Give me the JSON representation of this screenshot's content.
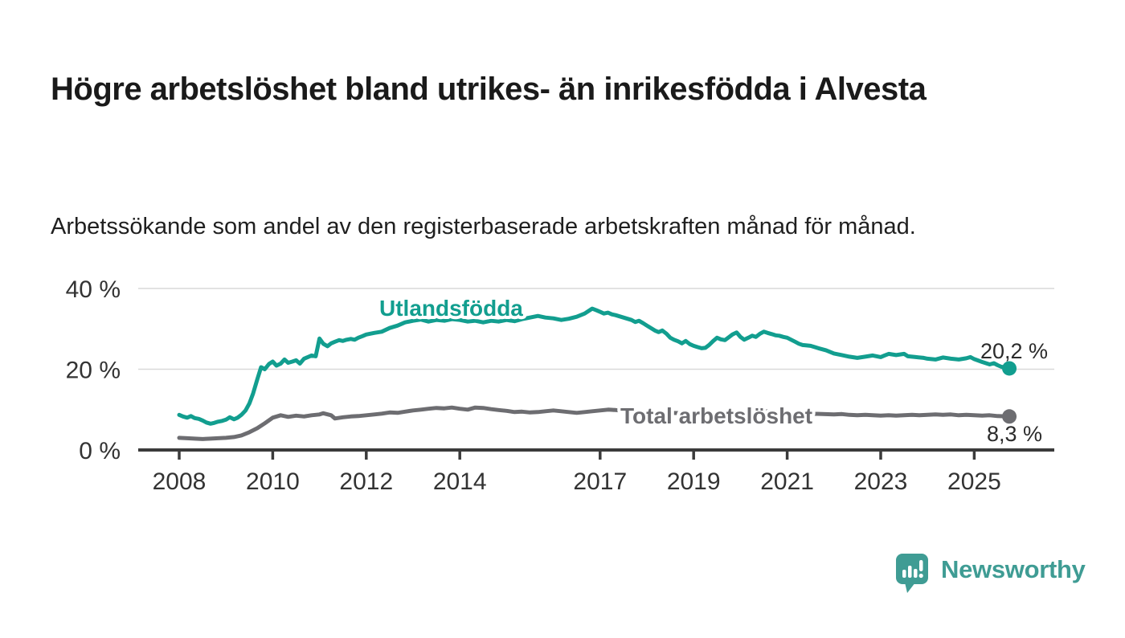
{
  "title": "Högre arbetslöshet bland utrikes- än inrikesfödda i Alvesta",
  "subtitle": "Arbetssökande som andel av den registerbaserade arbetskraften månad för månad.",
  "branding": {
    "logo_text": "Newsworthy",
    "logo_icon": "bar-chart-speech-bubble-icon",
    "logo_color": "#3f9c94"
  },
  "colors": {
    "foreign_born_line": "#129e8f",
    "total_line": "#6d6d71",
    "axis": "#3b3b3b",
    "gridline": "#d9d9d9",
    "tick_label": "#333333",
    "end_label": "#2b2b2b"
  },
  "chart_data": {
    "type": "line",
    "title": "Högre arbetslöshet bland utrikes- än inrikesfödda i Alvesta",
    "subtitle": "Arbetssökande som andel av den registerbaserade arbetskraften månad för månad.",
    "x_unit": "decimal_year",
    "y_unit": "percent",
    "xlim": [
      2007.1,
      2026.7
    ],
    "ylim": [
      0,
      42
    ],
    "grid": "horizontal",
    "x_ticks": [
      2008,
      2010,
      2012,
      2014,
      2017,
      2019,
      2021,
      2023,
      2025
    ],
    "y_ticks": [
      {
        "value": 0,
        "label": "0 %"
      },
      {
        "value": 20,
        "label": "20 %"
      },
      {
        "value": 40,
        "label": "40 %"
      }
    ],
    "legend_position": "inline-labels",
    "series": [
      {
        "name": "Utlandsfödda",
        "color": "#129e8f",
        "end_value": 20.2,
        "end_label": "20,2 %",
        "points": [
          [
            2008.0,
            8.7
          ],
          [
            2008.08,
            8.3
          ],
          [
            2008.17,
            8.0
          ],
          [
            2008.25,
            8.4
          ],
          [
            2008.33,
            7.9
          ],
          [
            2008.42,
            7.7
          ],
          [
            2008.5,
            7.3
          ],
          [
            2008.58,
            6.8
          ],
          [
            2008.67,
            6.5
          ],
          [
            2008.75,
            6.7
          ],
          [
            2008.83,
            7.0
          ],
          [
            2008.92,
            7.2
          ],
          [
            2009.0,
            7.5
          ],
          [
            2009.08,
            8.1
          ],
          [
            2009.17,
            7.6
          ],
          [
            2009.25,
            8.0
          ],
          [
            2009.33,
            8.7
          ],
          [
            2009.42,
            9.8
          ],
          [
            2009.5,
            11.5
          ],
          [
            2009.58,
            14.0
          ],
          [
            2009.67,
            17.5
          ],
          [
            2009.75,
            20.5
          ],
          [
            2009.83,
            20.0
          ],
          [
            2009.92,
            21.3
          ],
          [
            2010.0,
            21.9
          ],
          [
            2010.08,
            20.9
          ],
          [
            2010.17,
            21.4
          ],
          [
            2010.25,
            22.4
          ],
          [
            2010.33,
            21.6
          ],
          [
            2010.42,
            21.9
          ],
          [
            2010.5,
            22.2
          ],
          [
            2010.58,
            21.4
          ],
          [
            2010.67,
            22.6
          ],
          [
            2010.75,
            23.0
          ],
          [
            2010.83,
            23.4
          ],
          [
            2010.92,
            23.2
          ],
          [
            2011.0,
            27.6
          ],
          [
            2011.08,
            26.3
          ],
          [
            2011.17,
            25.7
          ],
          [
            2011.25,
            26.4
          ],
          [
            2011.33,
            26.8
          ],
          [
            2011.42,
            27.2
          ],
          [
            2011.5,
            27.0
          ],
          [
            2011.58,
            27.3
          ],
          [
            2011.67,
            27.5
          ],
          [
            2011.75,
            27.3
          ],
          [
            2011.83,
            27.8
          ],
          [
            2011.92,
            28.2
          ],
          [
            2012.0,
            28.6
          ],
          [
            2012.17,
            29.0
          ],
          [
            2012.33,
            29.3
          ],
          [
            2012.5,
            30.2
          ],
          [
            2012.67,
            30.8
          ],
          [
            2012.83,
            31.6
          ],
          [
            2013.0,
            32.0
          ],
          [
            2013.17,
            32.3
          ],
          [
            2013.33,
            31.8
          ],
          [
            2013.5,
            32.2
          ],
          [
            2013.67,
            32.0
          ],
          [
            2013.83,
            32.4
          ],
          [
            2014.0,
            32.2
          ],
          [
            2014.17,
            31.8
          ],
          [
            2014.33,
            32.0
          ],
          [
            2014.5,
            31.6
          ],
          [
            2014.67,
            32.0
          ],
          [
            2014.83,
            31.8
          ],
          [
            2015.0,
            32.2
          ],
          [
            2015.17,
            31.9
          ],
          [
            2015.33,
            32.4
          ],
          [
            2015.5,
            32.8
          ],
          [
            2015.67,
            33.2
          ],
          [
            2015.83,
            32.8
          ],
          [
            2016.0,
            32.6
          ],
          [
            2016.17,
            32.2
          ],
          [
            2016.33,
            32.5
          ],
          [
            2016.5,
            33.0
          ],
          [
            2016.67,
            33.8
          ],
          [
            2016.83,
            35.0
          ],
          [
            2016.92,
            34.6
          ],
          [
            2017.0,
            34.2
          ],
          [
            2017.08,
            33.8
          ],
          [
            2017.17,
            34.0
          ],
          [
            2017.25,
            33.6
          ],
          [
            2017.33,
            33.4
          ],
          [
            2017.5,
            32.8
          ],
          [
            2017.67,
            32.2
          ],
          [
            2017.75,
            31.7
          ],
          [
            2017.83,
            32.0
          ],
          [
            2017.92,
            31.4
          ],
          [
            2018.0,
            30.8
          ],
          [
            2018.17,
            29.6
          ],
          [
            2018.25,
            29.2
          ],
          [
            2018.33,
            29.6
          ],
          [
            2018.42,
            28.8
          ],
          [
            2018.5,
            27.8
          ],
          [
            2018.58,
            27.3
          ],
          [
            2018.67,
            26.9
          ],
          [
            2018.75,
            26.4
          ],
          [
            2018.83,
            27.0
          ],
          [
            2018.92,
            26.2
          ],
          [
            2019.0,
            25.8
          ],
          [
            2019.08,
            25.5
          ],
          [
            2019.17,
            25.2
          ],
          [
            2019.25,
            25.3
          ],
          [
            2019.33,
            26.0
          ],
          [
            2019.42,
            27.0
          ],
          [
            2019.5,
            27.8
          ],
          [
            2019.58,
            27.4
          ],
          [
            2019.67,
            27.2
          ],
          [
            2019.75,
            27.9
          ],
          [
            2019.83,
            28.6
          ],
          [
            2019.92,
            29.1
          ],
          [
            2020.0,
            28.0
          ],
          [
            2020.08,
            27.3
          ],
          [
            2020.17,
            27.8
          ],
          [
            2020.25,
            28.3
          ],
          [
            2020.33,
            28.0
          ],
          [
            2020.42,
            28.8
          ],
          [
            2020.5,
            29.3
          ],
          [
            2020.58,
            29.0
          ],
          [
            2020.67,
            28.7
          ],
          [
            2020.75,
            28.4
          ],
          [
            2020.83,
            28.3
          ],
          [
            2020.92,
            28.0
          ],
          [
            2021.0,
            27.8
          ],
          [
            2021.17,
            26.8
          ],
          [
            2021.25,
            26.3
          ],
          [
            2021.33,
            26.0
          ],
          [
            2021.42,
            25.9
          ],
          [
            2021.5,
            25.8
          ],
          [
            2021.67,
            25.2
          ],
          [
            2021.83,
            24.7
          ],
          [
            2022.0,
            23.9
          ],
          [
            2022.17,
            23.5
          ],
          [
            2022.33,
            23.1
          ],
          [
            2022.5,
            22.8
          ],
          [
            2022.67,
            23.1
          ],
          [
            2022.83,
            23.4
          ],
          [
            2023.0,
            23.0
          ],
          [
            2023.08,
            23.4
          ],
          [
            2023.17,
            23.8
          ],
          [
            2023.33,
            23.5
          ],
          [
            2023.5,
            23.8
          ],
          [
            2023.58,
            23.2
          ],
          [
            2023.75,
            23.0
          ],
          [
            2023.92,
            22.8
          ],
          [
            2024.0,
            22.6
          ],
          [
            2024.17,
            22.4
          ],
          [
            2024.33,
            22.9
          ],
          [
            2024.5,
            22.6
          ],
          [
            2024.67,
            22.4
          ],
          [
            2024.83,
            22.7
          ],
          [
            2024.92,
            23.0
          ],
          [
            2025.0,
            22.5
          ],
          [
            2025.17,
            21.8
          ],
          [
            2025.33,
            21.2
          ],
          [
            2025.42,
            21.5
          ],
          [
            2025.5,
            21.0
          ],
          [
            2025.58,
            20.6
          ],
          [
            2025.75,
            20.2
          ]
        ]
      },
      {
        "name": "Total arbetslöshet",
        "color": "#6d6d71",
        "end_value": 8.3,
        "end_label": "8,3 %",
        "points": [
          [
            2008.0,
            3.0
          ],
          [
            2008.17,
            2.9
          ],
          [
            2008.33,
            2.8
          ],
          [
            2008.5,
            2.7
          ],
          [
            2008.67,
            2.8
          ],
          [
            2008.83,
            2.9
          ],
          [
            2009.0,
            3.0
          ],
          [
            2009.17,
            3.2
          ],
          [
            2009.33,
            3.6
          ],
          [
            2009.5,
            4.4
          ],
          [
            2009.67,
            5.4
          ],
          [
            2009.83,
            6.6
          ],
          [
            2010.0,
            8.0
          ],
          [
            2010.17,
            8.6
          ],
          [
            2010.33,
            8.2
          ],
          [
            2010.5,
            8.5
          ],
          [
            2010.67,
            8.3
          ],
          [
            2010.83,
            8.6
          ],
          [
            2011.0,
            8.8
          ],
          [
            2011.08,
            9.1
          ],
          [
            2011.25,
            8.6
          ],
          [
            2011.33,
            7.8
          ],
          [
            2011.5,
            8.1
          ],
          [
            2011.67,
            8.3
          ],
          [
            2011.83,
            8.4
          ],
          [
            2012.0,
            8.6
          ],
          [
            2012.17,
            8.8
          ],
          [
            2012.33,
            9.0
          ],
          [
            2012.5,
            9.3
          ],
          [
            2012.67,
            9.2
          ],
          [
            2012.83,
            9.5
          ],
          [
            2013.0,
            9.8
          ],
          [
            2013.17,
            10.0
          ],
          [
            2013.33,
            10.2
          ],
          [
            2013.5,
            10.4
          ],
          [
            2013.67,
            10.3
          ],
          [
            2013.83,
            10.5
          ],
          [
            2014.0,
            10.2
          ],
          [
            2014.17,
            10.0
          ],
          [
            2014.33,
            10.5
          ],
          [
            2014.5,
            10.4
          ],
          [
            2014.67,
            10.1
          ],
          [
            2014.83,
            9.9
          ],
          [
            2015.0,
            9.7
          ],
          [
            2015.17,
            9.4
          ],
          [
            2015.33,
            9.5
          ],
          [
            2015.5,
            9.3
          ],
          [
            2015.67,
            9.4
          ],
          [
            2015.83,
            9.6
          ],
          [
            2016.0,
            9.8
          ],
          [
            2016.17,
            9.6
          ],
          [
            2016.33,
            9.4
          ],
          [
            2016.5,
            9.2
          ],
          [
            2016.67,
            9.4
          ],
          [
            2016.83,
            9.6
          ],
          [
            2017.0,
            9.8
          ],
          [
            2017.17,
            10.0
          ],
          [
            2017.33,
            9.9
          ],
          [
            2017.5,
            9.7
          ],
          [
            2017.75,
            9.5
          ],
          [
            2018.0,
            9.4
          ],
          [
            2018.5,
            9.2
          ],
          [
            2019.0,
            9.0
          ],
          [
            2019.5,
            8.9
          ],
          [
            2020.0,
            9.2
          ],
          [
            2020.5,
            9.6
          ],
          [
            2021.0,
            9.3
          ],
          [
            2021.5,
            9.0
          ],
          [
            2022.0,
            8.8
          ],
          [
            2022.17,
            8.9
          ],
          [
            2022.33,
            8.7
          ],
          [
            2022.5,
            8.6
          ],
          [
            2022.67,
            8.7
          ],
          [
            2022.83,
            8.6
          ],
          [
            2023.0,
            8.5
          ],
          [
            2023.17,
            8.6
          ],
          [
            2023.33,
            8.5
          ],
          [
            2023.5,
            8.6
          ],
          [
            2023.67,
            8.7
          ],
          [
            2023.83,
            8.6
          ],
          [
            2024.0,
            8.7
          ],
          [
            2024.17,
            8.8
          ],
          [
            2024.33,
            8.7
          ],
          [
            2024.5,
            8.8
          ],
          [
            2024.67,
            8.6
          ],
          [
            2024.83,
            8.7
          ],
          [
            2025.0,
            8.6
          ],
          [
            2025.17,
            8.5
          ],
          [
            2025.33,
            8.6
          ],
          [
            2025.5,
            8.4
          ],
          [
            2025.75,
            8.3
          ]
        ]
      }
    ]
  }
}
